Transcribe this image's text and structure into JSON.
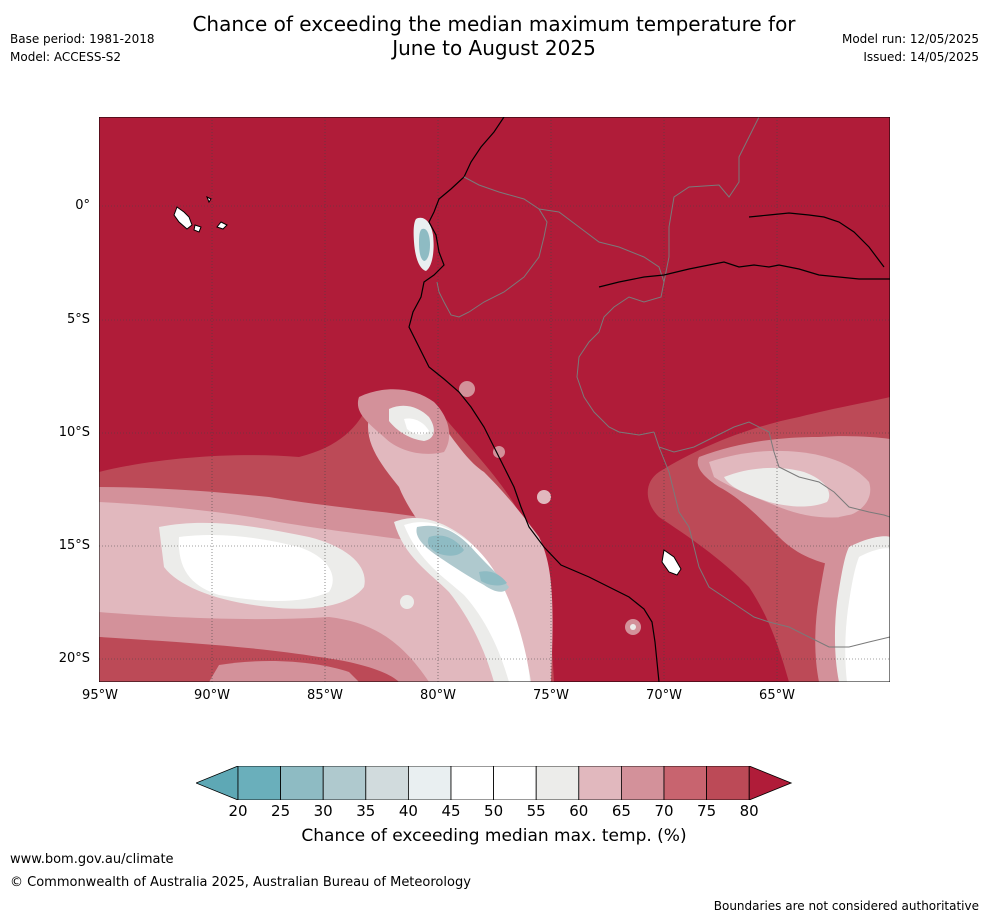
{
  "title_line1": "Chance of exceeding the median maximum temperature for",
  "title_line2": "June to August 2025",
  "meta_left": {
    "base_period": "Base period: 1981-2018",
    "model": "Model: ACCESS-S2"
  },
  "meta_right": {
    "model_run": "Model run: 12/05/2025",
    "issued": "Issued: 14/05/2025"
  },
  "map": {
    "lat_labels": [
      "0°",
      "5°S",
      "10°S",
      "15°S",
      "20°S"
    ],
    "lon_labels": [
      "95°W",
      "90°W",
      "85°W",
      "80°W",
      "75°W",
      "70°W",
      "65°W"
    ]
  },
  "colorbar": {
    "ticks": [
      "20",
      "25",
      "30",
      "35",
      "40",
      "45",
      "50",
      "55",
      "60",
      "65",
      "70",
      "75",
      "80"
    ],
    "colors": [
      "#5ea8b5",
      "#6aafbb",
      "#8ebbc3",
      "#afc9ce",
      "#d1dbdd",
      "#e9eff1",
      "#ffffff",
      "#ffffff",
      "#ececea",
      "#e1b8be",
      "#d3919a",
      "#c8646f",
      "#bc4a57",
      "#b01c39"
    ],
    "label": "Chance of exceeding median max. temp. (%)"
  },
  "footer": {
    "url": "www.bom.gov.au/climate",
    "copyright": "© Commonwealth of Australia 2025, Australian Bureau of Meteorology",
    "note": "Boundaries are not considered authoritative"
  }
}
